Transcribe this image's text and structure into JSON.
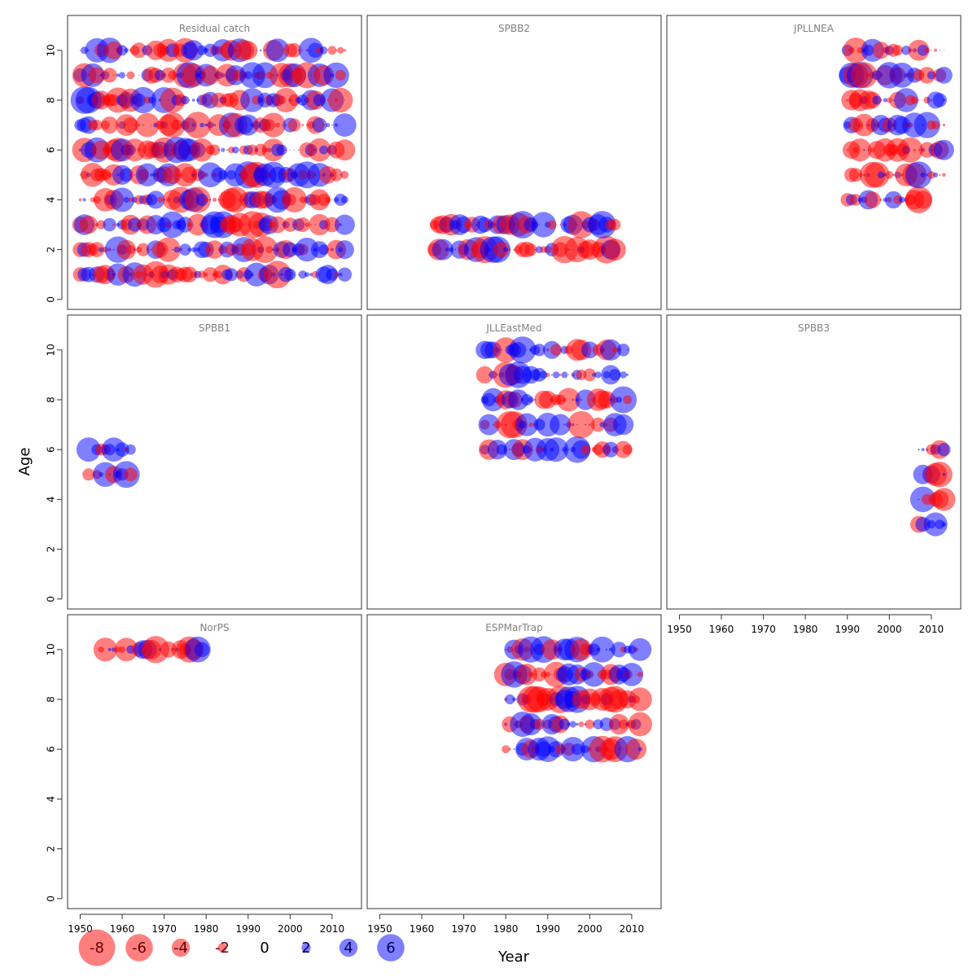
{
  "chart_data": {
    "type": "scatter",
    "xlabel": "Year",
    "ylabel": "Age",
    "xlim": [
      1947,
      2017
    ],
    "ylim": [
      -0.4,
      11.4
    ],
    "x_ticks": [
      "1950",
      "1960",
      "1970",
      "1980",
      "1990",
      "2000",
      "2010"
    ],
    "y_ticks": [
      "0",
      "2",
      "4",
      "6",
      "8",
      "10"
    ],
    "colors": {
      "positive": "#0000ff",
      "negative": "#ff0000"
    },
    "legend": {
      "position": "bottom-left",
      "entries": [
        {
          "label": "-8",
          "value": -8
        },
        {
          "label": "-6",
          "value": -6
        },
        {
          "label": "-4",
          "value": -4
        },
        {
          "label": "-2",
          "value": -2
        },
        {
          "label": "0",
          "value": 0
        },
        {
          "label": "2",
          "value": 2
        },
        {
          "label": "4",
          "value": 4
        },
        {
          "label": "6",
          "value": 6
        }
      ]
    },
    "panels": [
      {
        "title": "Residual catch",
        "ages": [
          1,
          2,
          3,
          4,
          5,
          6,
          7,
          8,
          9,
          10
        ],
        "age_start": {},
        "age_end": {
          "4": 2013,
          "5": 2013,
          "6": 2013,
          "7": 2013
        },
        "x_start": 1950,
        "x_end": 2013
      },
      {
        "title": "SPBB2",
        "ages": [
          2,
          3
        ],
        "age_start": {},
        "age_end": {},
        "x_start": 1963,
        "x_end": 2006
      },
      {
        "title": "JPLLNEA",
        "ages": [
          4,
          5,
          6,
          7,
          8,
          9,
          10
        ],
        "age_start": {
          "5": 1991,
          "6": 1990
        },
        "age_end": {
          "4": 2008
        },
        "x_start": 1990,
        "x_end": 2013
      },
      {
        "title": "SPBB1",
        "ages": [
          5,
          6
        ],
        "age_start": {
          "6": 1952
        },
        "age_end": {},
        "x_start": 1952,
        "x_end": 1962
      },
      {
        "title": "JLLEastMed",
        "ages": [
          6,
          7,
          8,
          9,
          10
        ],
        "age_start": {},
        "age_end": {},
        "x_start": 1975,
        "x_end": 2009
      },
      {
        "title": "SPBB3",
        "ages": [
          3,
          4,
          5,
          6
        ],
        "age_start": {},
        "age_end": {},
        "x_start": 2007,
        "x_end": 2013
      },
      {
        "title": "NorPS",
        "ages": [
          10
        ],
        "age_start": {},
        "age_end": {},
        "x_start": 1955,
        "x_end": 1979
      },
      {
        "title": "ESPMarTrap",
        "ages": [
          6,
          7,
          8,
          9,
          10
        ],
        "age_start": {},
        "age_end": {},
        "x_start": 1980,
        "x_end": 2012
      }
    ]
  }
}
